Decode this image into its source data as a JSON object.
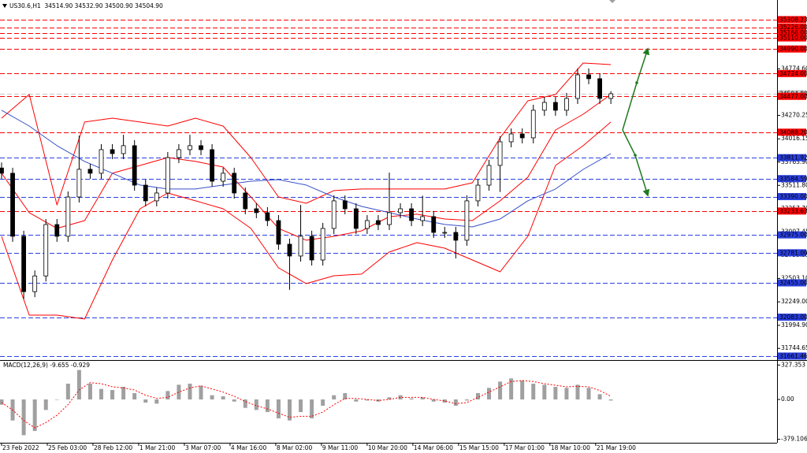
{
  "chart_data": [
    {
      "type": "candlestick",
      "title": "US30.6,H1  34514.90 34532.90 34500.90 34504.90",
      "color": "#000000",
      "x": [
        0,
        8,
        16,
        24,
        32,
        40,
        48,
        56,
        64,
        72,
        80,
        88,
        96,
        104,
        112,
        120,
        128,
        136,
        144,
        152,
        160,
        168,
        176,
        184,
        192,
        200,
        208,
        216,
        224,
        232,
        240,
        248,
        256,
        264,
        272,
        280,
        288,
        296,
        304,
        312,
        320,
        328,
        336,
        344,
        352,
        360,
        368,
        376,
        384,
        392,
        400,
        408,
        416,
        424,
        432,
        440
      ],
      "open": [
        33700,
        33643,
        32960,
        32360,
        32530,
        33087,
        32960,
        33386,
        33686,
        33643,
        33899,
        33856,
        33942,
        33514,
        33344,
        33429,
        33813,
        33899,
        33942,
        33899,
        33557,
        33643,
        33429,
        33258,
        33216,
        33130,
        32874,
        32746,
        32960,
        32703,
        33045,
        33344,
        33258,
        33045,
        33130,
        33087,
        33216,
        33258,
        33130,
        33173,
        33002,
        33002,
        32917,
        33344,
        33514,
        33728,
        33984,
        34069,
        34027,
        34326,
        34411,
        34326,
        34454,
        34710,
        34668,
        34454
      ],
      "high": [
        33760,
        33703,
        33020,
        32590,
        33147,
        33147,
        33446,
        34050,
        33746,
        33959,
        33959,
        34060,
        34002,
        33574,
        33489,
        33873,
        33959,
        34060,
        34002,
        33959,
        33703,
        33703,
        33489,
        33318,
        33276,
        33190,
        32934,
        33300,
        33020,
        33105,
        33404,
        33404,
        33318,
        33190,
        33190,
        33650,
        33318,
        33318,
        33400,
        33233,
        33062,
        33062,
        33404,
        33574,
        33788,
        34044,
        34129,
        34129,
        34386,
        34471,
        34471,
        34514,
        34780,
        34780,
        34728,
        34533
      ],
      "low": [
        33583,
        32900,
        32280,
        32300,
        32470,
        32900,
        32900,
        33326,
        33583,
        33583,
        33796,
        33796,
        33454,
        33284,
        33284,
        33369,
        33753,
        33839,
        33839,
        33497,
        33497,
        33369,
        33198,
        33156,
        33070,
        32814,
        32380,
        32686,
        32643,
        32643,
        32985,
        33198,
        32985,
        32985,
        33027,
        33027,
        33156,
        33070,
        33070,
        32942,
        32942,
        32720,
        32857,
        33284,
        33454,
        33440,
        33924,
        33967,
        33967,
        34266,
        34266,
        34266,
        34394,
        34608,
        34394,
        34394
      ],
      "close": [
        33643,
        32960,
        32360,
        32530,
        33087,
        32960,
        33386,
        33686,
        33643,
        33899,
        33856,
        33942,
        33514,
        33344,
        33429,
        33813,
        33899,
        33942,
        33899,
        33557,
        33643,
        33429,
        33258,
        33216,
        33130,
        32874,
        32746,
        32960,
        32703,
        33045,
        33344,
        33258,
        33045,
        33130,
        33087,
        33216,
        33258,
        33130,
        33173,
        33002,
        33002,
        32917,
        33344,
        33514,
        33728,
        33984,
        34069,
        34027,
        34326,
        34411,
        34326,
        34454,
        34710,
        34668,
        34454,
        34505
      ],
      "xlim": [
        0,
        560
      ],
      "xticks": [
        {
          "value": 0,
          "label": "23 Feb 2022"
        },
        {
          "value": 33,
          "label": "25 Feb 03:00"
        },
        {
          "value": 66,
          "label": "28 Feb 12:00"
        },
        {
          "value": 99,
          "label": "1 Mar 21:00"
        },
        {
          "value": 132,
          "label": "3 Mar 07:00"
        },
        {
          "value": 165,
          "label": "4 Mar 16:00"
        },
        {
          "value": 198,
          "label": "8 Mar 02:00"
        },
        {
          "value": 231,
          "label": "9 Mar 11:00"
        },
        {
          "value": 264,
          "label": "10 Mar 20:00"
        },
        {
          "value": 297,
          "label": "14 Mar 06:00"
        },
        {
          "value": 330,
          "label": "15 Mar 15:00"
        },
        {
          "value": 363,
          "label": "17 Mar 01:00"
        },
        {
          "value": 396,
          "label": "18 Mar 10:00"
        },
        {
          "value": 429,
          "label": "21 Mar 19:00"
        }
      ],
      "ylim": [
        31627,
        35521
      ],
      "yticks": [
        {
          "value": 34774.6,
          "label": "34774.60"
        },
        34270.25,
        34016.15,
        {
          "value": 33763.9,
          "label": "33763.90"
        },
        {
          "value": 33511.8,
          "label": "33511.80"
        },
        {
          "value": 33257.7,
          "label": "33257.70"
        },
        33007.45,
        32753.35,
        {
          "value": 32503.1,
          "label": "32503.10"
        },
        {
          "value": 32249,
          "label": "32249.00"
        },
        {
          "value": 31994.9,
          "label": "31994.90"
        },
        31744.65
      ],
      "series": [
        {
          "color": "#ff0000",
          "x": [
            0,
            20,
            40,
            60,
            80,
            100,
            120,
            140,
            160,
            180,
            200,
            220,
            240,
            260,
            280,
            300,
            320,
            340,
            360,
            380,
            400,
            420,
            440
          ],
          "values": [
            34240,
            34497,
            33300,
            34198,
            34240,
            34198,
            34155,
            34240,
            34155,
            33813,
            33386,
            33318,
            33455,
            33472,
            33472,
            33472,
            33472,
            33540,
            34027,
            34428,
            34497,
            34838,
            34821
          ]
        },
        {
          "color": "#ff0000",
          "x": [
            0,
            20,
            40,
            60,
            80,
            100,
            120,
            140,
            160,
            180,
            200,
            220,
            240,
            260,
            280,
            300,
            320,
            340,
            360,
            380,
            400,
            420,
            440
          ],
          "values": [
            33643,
            33216,
            33045,
            33130,
            33643,
            33728,
            33813,
            33771,
            33711,
            33386,
            33045,
            32917,
            32959,
            33019,
            33173,
            33199,
            33147,
            33130,
            33344,
            33600,
            34112,
            34283,
            34497
          ]
        },
        {
          "color": "#ff0000",
          "x": [
            0,
            20,
            40,
            60,
            80,
            100,
            120,
            140,
            160,
            180,
            200,
            220,
            240,
            260,
            280,
            300,
            320,
            340,
            360,
            380,
            400,
            420,
            440
          ],
          "values": [
            32959,
            32105,
            32105,
            32063,
            32703,
            33258,
            33429,
            33344,
            33258,
            33045,
            32618,
            32447,
            32532,
            32550,
            32789,
            32891,
            32831,
            32703,
            32575,
            32959,
            33728,
            33942,
            34198
          ]
        },
        {
          "color": "#3850c8",
          "x": [
            0,
            20,
            40,
            60,
            80,
            100,
            120,
            140,
            160,
            180,
            200,
            220,
            240,
            260,
            280,
            300,
            320,
            340,
            360,
            380,
            400,
            420,
            440
          ],
          "values": [
            34326,
            34155,
            33942,
            33771,
            33643,
            33515,
            33472,
            33472,
            33515,
            33557,
            33574,
            33515,
            33386,
            33284,
            33216,
            33147,
            33088,
            33062,
            33147,
            33344,
            33472,
            33685,
            33856
          ]
        }
      ],
      "levels": [
        {
          "value": 35308.23,
          "color": "#ff0000"
        },
        {
          "value": 35226,
          "label": "35226.00",
          "color": "#ff0000"
        },
        {
          "value": 35166,
          "label": "35166.00",
          "color": "#ff0000"
        },
        {
          "value": 35110,
          "label": "35110.00",
          "color": "#ff0000"
        },
        {
          "value": 34990,
          "label": "34990.00",
          "color": "#ff0000"
        },
        {
          "value": 34724,
          "label": "34724.00",
          "color": "#ff0000"
        },
        {
          "value": 34504.8,
          "label": "34504.80",
          "color": "#c8c8c8"
        },
        {
          "value": 34477,
          "label": "34477.00",
          "color": "#ff0000"
        },
        {
          "value": 34088.2,
          "label": "34088.20",
          "color": "#ff0000"
        },
        {
          "value": 33811.92,
          "color": "#2a3fe0"
        },
        {
          "value": 33584.59,
          "color": "#2a3fe0"
        },
        {
          "value": 33390,
          "label": "33390.00",
          "color": "#2a3fe0"
        },
        {
          "value": 33233.63,
          "color": "#ff0000"
        },
        {
          "value": 32975,
          "label": "32975.00",
          "color": "#2a3fe0"
        },
        {
          "value": 32781,
          "label": "32781.00",
          "color": "#2a3fe0"
        },
        {
          "value": 32455,
          "label": "32455.00",
          "color": "#2a3fe0"
        },
        {
          "value": 32083,
          "label": "32083.00",
          "color": "#2a3fe0"
        },
        {
          "value": 31661.46,
          "color": "#2a3fe0"
        }
      ]
    },
    {
      "type": "histogram-macd",
      "title": "MACD(12,26,9) -9.655 -0.929",
      "color": "#a0a0a0",
      "x": [
        0,
        8,
        16,
        24,
        32,
        40,
        48,
        56,
        64,
        72,
        80,
        88,
        96,
        104,
        112,
        120,
        128,
        136,
        144,
        152,
        160,
        168,
        176,
        184,
        192,
        200,
        208,
        216,
        224,
        232,
        240,
        248,
        256,
        264,
        272,
        280,
        288,
        296,
        304,
        312,
        320,
        328,
        336,
        344,
        352,
        360,
        368,
        376,
        384,
        392,
        400,
        408,
        416,
        424,
        432,
        440
      ],
      "values": [
        -50,
        -200,
        -340,
        -300,
        -100,
        0,
        150,
        280,
        150,
        100,
        90,
        120,
        60,
        -30,
        -40,
        80,
        140,
        150,
        130,
        40,
        30,
        -20,
        -80,
        -100,
        -120,
        -180,
        -200,
        -120,
        -180,
        -60,
        40,
        60,
        -20,
        -10,
        -20,
        20,
        40,
        10,
        20,
        -20,
        -30,
        -60,
        -10,
        60,
        110,
        170,
        200,
        180,
        150,
        140,
        120,
        110,
        140,
        110,
        50,
        -10
      ],
      "series": [
        {
          "color": "#ff0000",
          "values": [
            -30,
            -100,
            -200,
            -270,
            -220,
            -150,
            -50,
            90,
            160,
            150,
            120,
            110,
            90,
            40,
            10,
            20,
            70,
            110,
            130,
            100,
            70,
            30,
            -20,
            -60,
            -90,
            -130,
            -170,
            -160,
            -160,
            -120,
            -50,
            10,
            10,
            0,
            -10,
            0,
            20,
            20,
            20,
            0,
            -15,
            -40,
            -30,
            20,
            70,
            120,
            170,
            180,
            170,
            150,
            135,
            120,
            125,
            120,
            85,
            30
          ]
        }
      ],
      "ylim": [
        -412,
        360
      ],
      "yticks": [
        327.353,
        {
          "value": 0,
          "label": "0.00"
        },
        -379.106
      ]
    }
  ]
}
